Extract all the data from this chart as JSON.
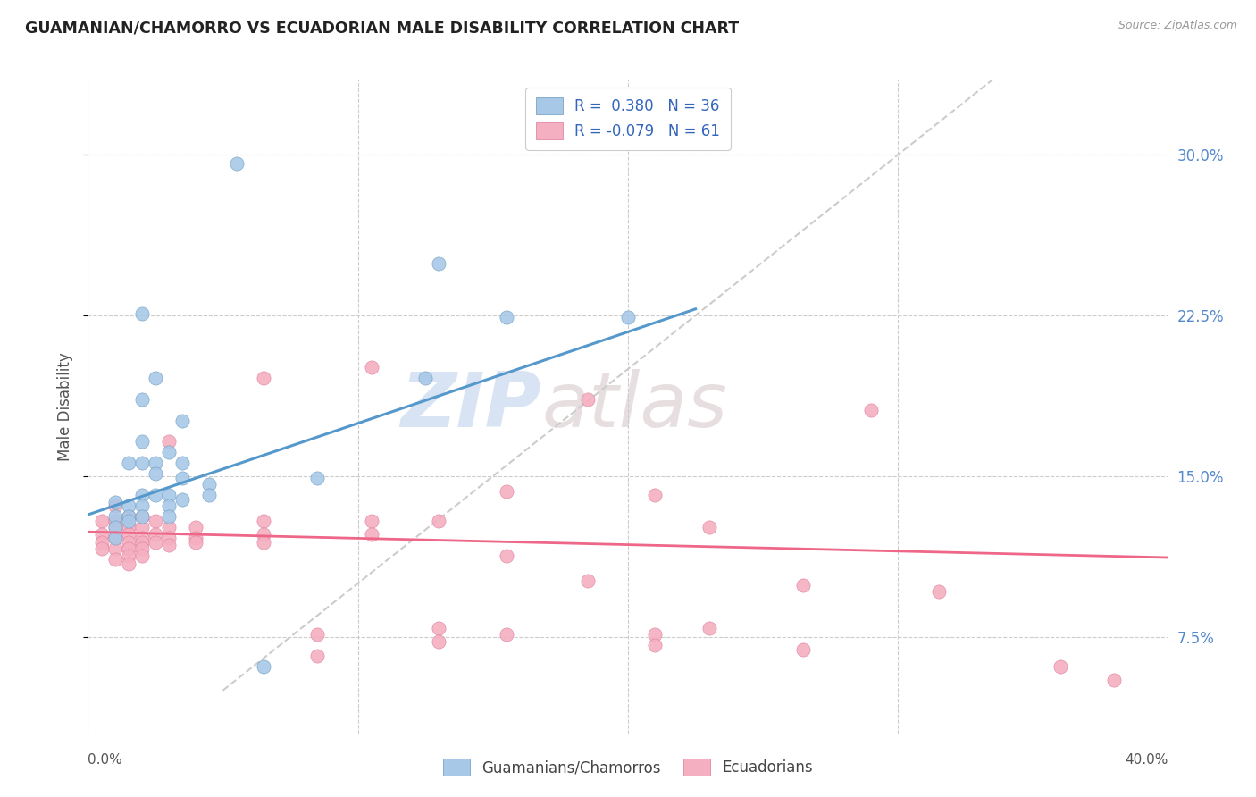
{
  "title": "GUAMANIAN/CHAMORRO VS ECUADORIAN MALE DISABILITY CORRELATION CHART",
  "source": "Source: ZipAtlas.com",
  "ylabel": "Male Disability",
  "ytick_vals": [
    0.075,
    0.15,
    0.225,
    0.3
  ],
  "ytick_labels": [
    "7.5%",
    "15.0%",
    "22.5%",
    "30.0%"
  ],
  "xrange": [
    0.0,
    0.4
  ],
  "yrange": [
    0.03,
    0.335
  ],
  "color_blue": "#a8c8e8",
  "color_pink": "#f4afc0",
  "trendline_blue": "#5599cc",
  "trendline_pink": "#ee6688",
  "trendline_gray": "#cccccc",
  "watermark_zip": "ZIP",
  "watermark_atlas": "atlas",
  "blue_scatter": [
    [
      0.01,
      0.138
    ],
    [
      0.01,
      0.131
    ],
    [
      0.01,
      0.126
    ],
    [
      0.01,
      0.121
    ],
    [
      0.015,
      0.156
    ],
    [
      0.015,
      0.136
    ],
    [
      0.015,
      0.131
    ],
    [
      0.015,
      0.129
    ],
    [
      0.02,
      0.226
    ],
    [
      0.02,
      0.186
    ],
    [
      0.02,
      0.166
    ],
    [
      0.02,
      0.156
    ],
    [
      0.02,
      0.141
    ],
    [
      0.02,
      0.136
    ],
    [
      0.02,
      0.131
    ],
    [
      0.025,
      0.196
    ],
    [
      0.025,
      0.156
    ],
    [
      0.025,
      0.151
    ],
    [
      0.025,
      0.141
    ],
    [
      0.03,
      0.161
    ],
    [
      0.03,
      0.141
    ],
    [
      0.03,
      0.136
    ],
    [
      0.03,
      0.131
    ],
    [
      0.035,
      0.176
    ],
    [
      0.035,
      0.156
    ],
    [
      0.035,
      0.149
    ],
    [
      0.035,
      0.139
    ],
    [
      0.045,
      0.146
    ],
    [
      0.045,
      0.141
    ],
    [
      0.065,
      0.061
    ],
    [
      0.085,
      0.149
    ],
    [
      0.13,
      0.249
    ],
    [
      0.155,
      0.224
    ],
    [
      0.2,
      0.224
    ],
    [
      0.055,
      0.296
    ],
    [
      0.125,
      0.196
    ]
  ],
  "pink_scatter": [
    [
      0.005,
      0.129
    ],
    [
      0.005,
      0.123
    ],
    [
      0.005,
      0.119
    ],
    [
      0.005,
      0.116
    ],
    [
      0.01,
      0.136
    ],
    [
      0.01,
      0.129
    ],
    [
      0.01,
      0.126
    ],
    [
      0.01,
      0.121
    ],
    [
      0.01,
      0.116
    ],
    [
      0.01,
      0.111
    ],
    [
      0.015,
      0.131
    ],
    [
      0.015,
      0.126
    ],
    [
      0.015,
      0.123
    ],
    [
      0.015,
      0.119
    ],
    [
      0.015,
      0.116
    ],
    [
      0.015,
      0.113
    ],
    [
      0.015,
      0.109
    ],
    [
      0.02,
      0.131
    ],
    [
      0.02,
      0.126
    ],
    [
      0.02,
      0.121
    ],
    [
      0.02,
      0.119
    ],
    [
      0.02,
      0.116
    ],
    [
      0.02,
      0.113
    ],
    [
      0.025,
      0.129
    ],
    [
      0.025,
      0.123
    ],
    [
      0.025,
      0.119
    ],
    [
      0.03,
      0.166
    ],
    [
      0.03,
      0.126
    ],
    [
      0.03,
      0.121
    ],
    [
      0.03,
      0.118
    ],
    [
      0.04,
      0.126
    ],
    [
      0.04,
      0.121
    ],
    [
      0.04,
      0.119
    ],
    [
      0.065,
      0.196
    ],
    [
      0.065,
      0.129
    ],
    [
      0.065,
      0.123
    ],
    [
      0.065,
      0.119
    ],
    [
      0.085,
      0.076
    ],
    [
      0.085,
      0.066
    ],
    [
      0.105,
      0.201
    ],
    [
      0.105,
      0.129
    ],
    [
      0.105,
      0.123
    ],
    [
      0.13,
      0.129
    ],
    [
      0.13,
      0.079
    ],
    [
      0.13,
      0.073
    ],
    [
      0.155,
      0.143
    ],
    [
      0.155,
      0.113
    ],
    [
      0.155,
      0.076
    ],
    [
      0.185,
      0.186
    ],
    [
      0.185,
      0.101
    ],
    [
      0.21,
      0.141
    ],
    [
      0.21,
      0.076
    ],
    [
      0.21,
      0.071
    ],
    [
      0.23,
      0.126
    ],
    [
      0.23,
      0.079
    ],
    [
      0.265,
      0.099
    ],
    [
      0.265,
      0.069
    ],
    [
      0.29,
      0.181
    ],
    [
      0.315,
      0.096
    ],
    [
      0.36,
      0.061
    ],
    [
      0.38,
      0.055
    ]
  ],
  "blue_trend_x": [
    0.0,
    0.225
  ],
  "blue_trend_y": [
    0.132,
    0.228
  ],
  "pink_trend_x": [
    0.0,
    0.4
  ],
  "pink_trend_y": [
    0.124,
    0.112
  ],
  "gray_trend_x": [
    0.05,
    0.335
  ],
  "gray_trend_y": [
    0.05,
    0.335
  ]
}
